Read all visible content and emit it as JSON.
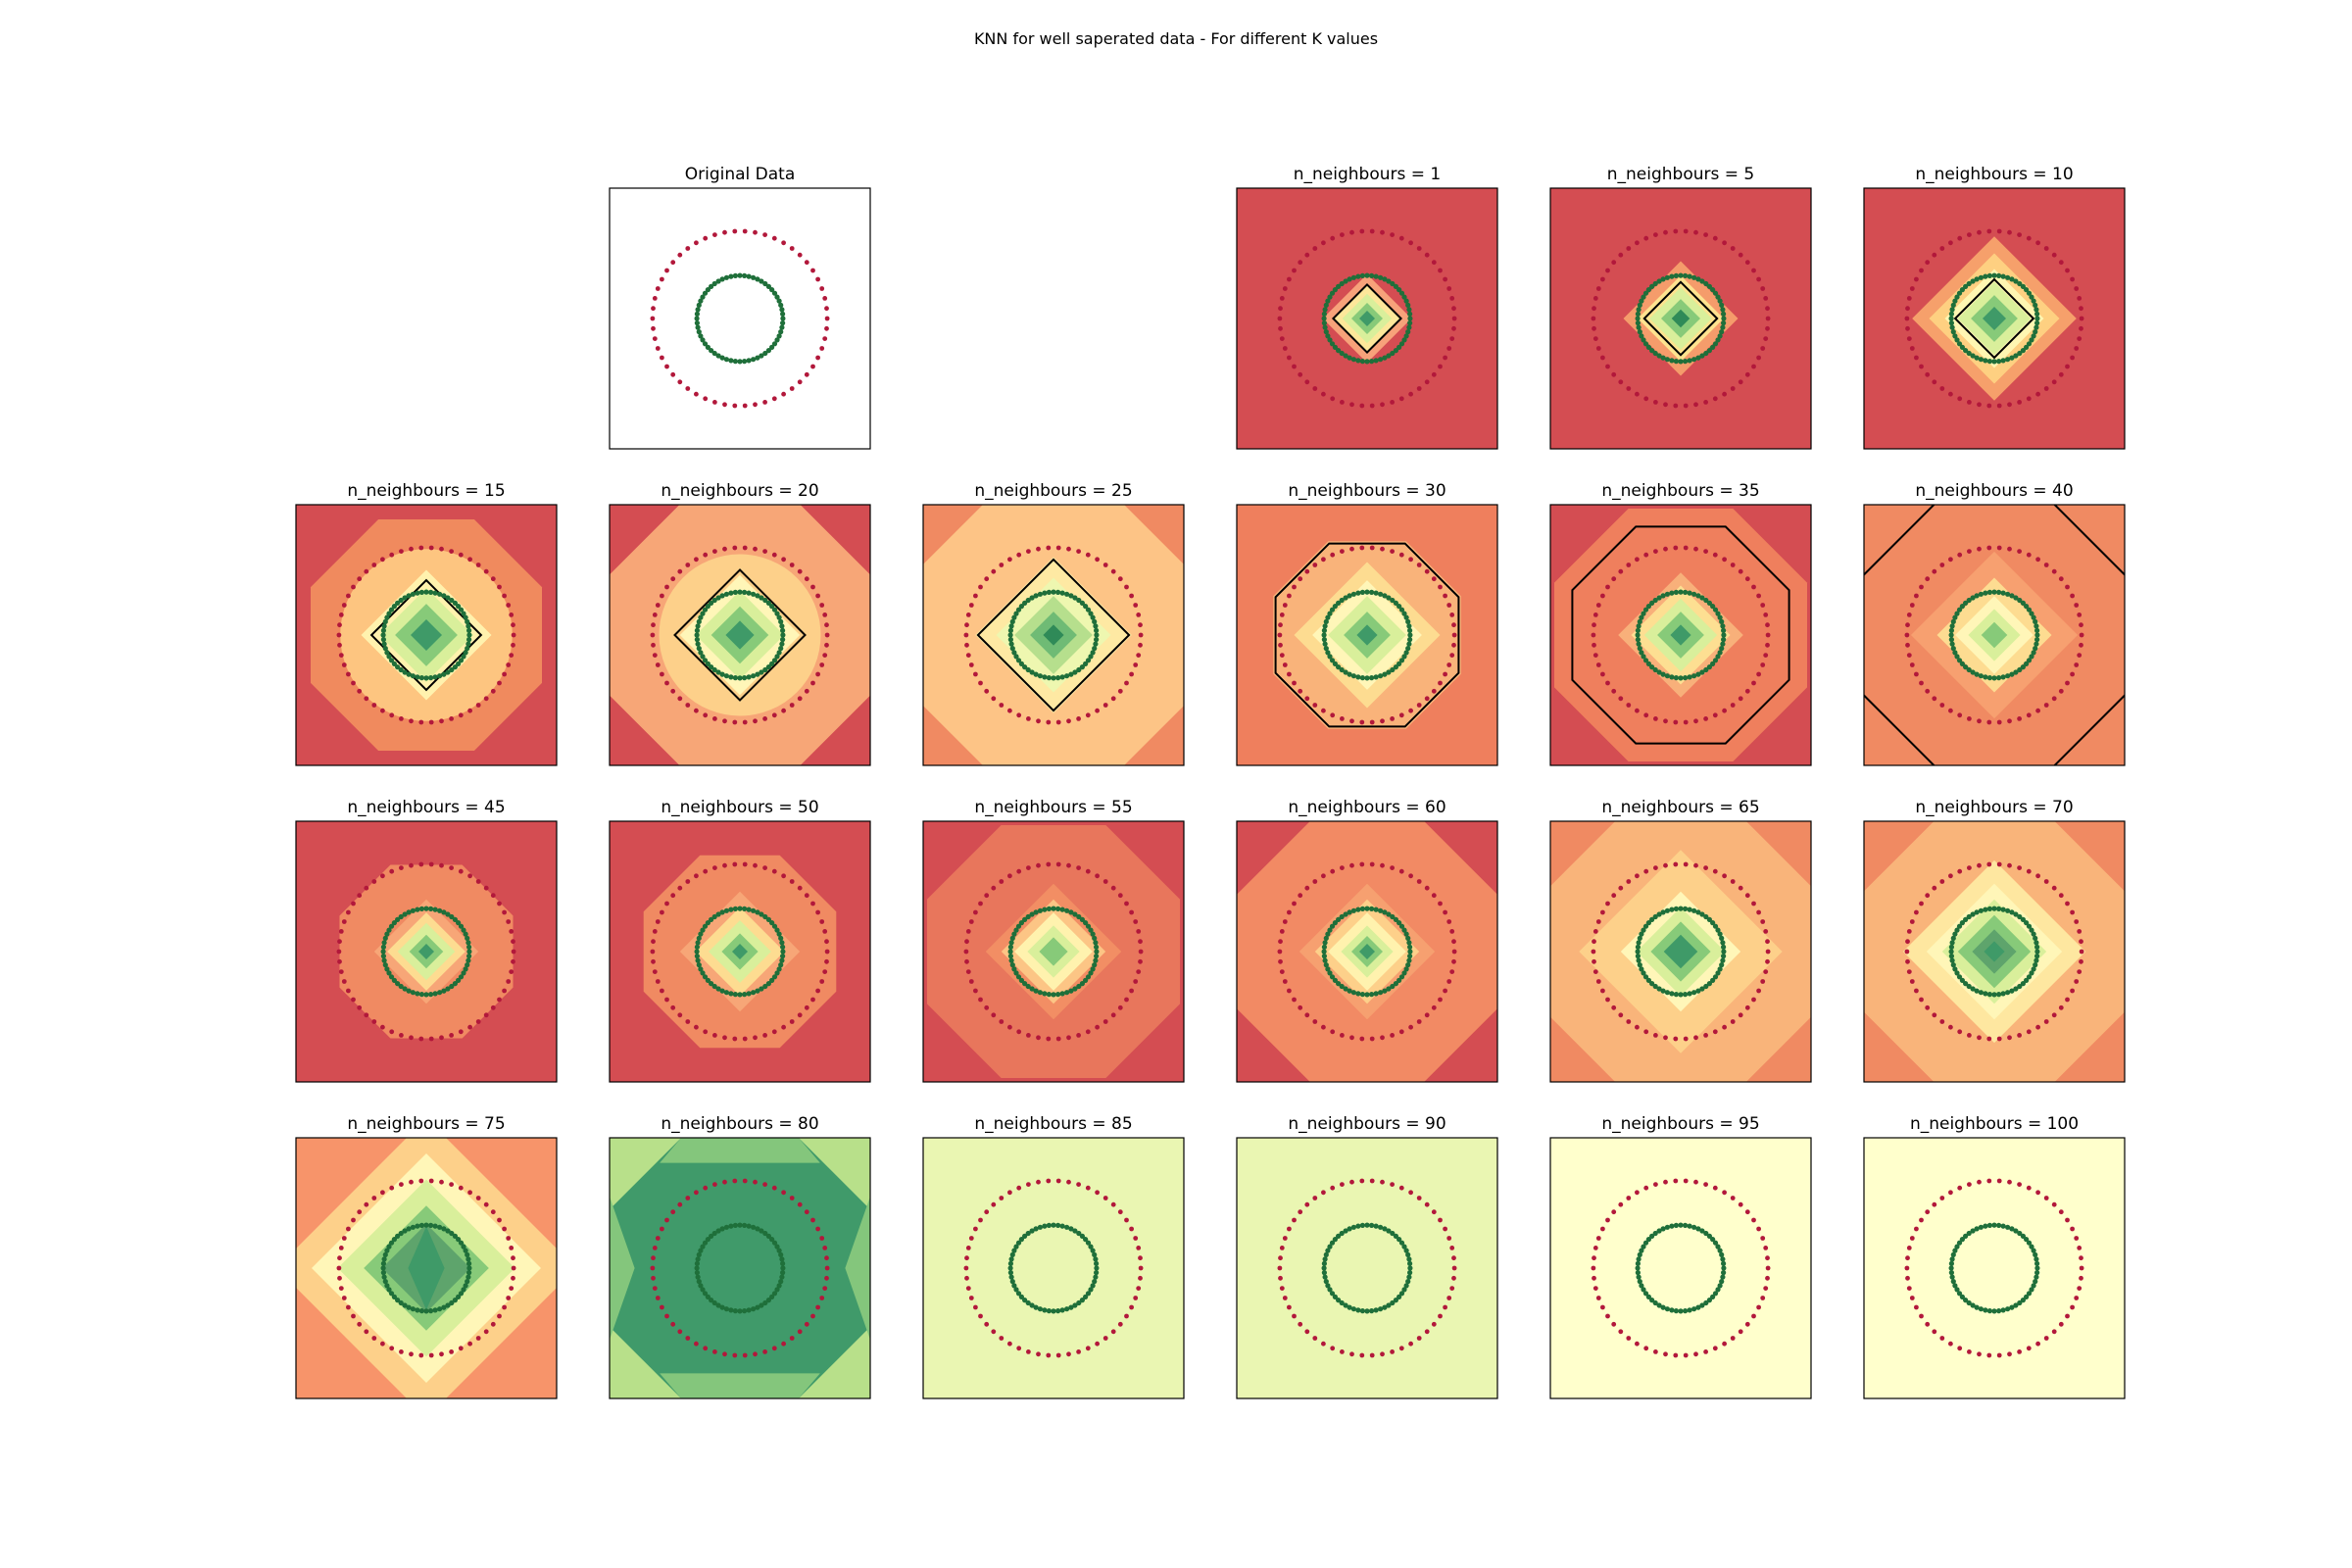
{
  "figure_title": "KNN for well saperated data - For different K values",
  "colors": {
    "inner_ring": "#1f6f3a",
    "outer_ring": "#b2183b",
    "boundary": "#000000",
    "frame": "#000000"
  },
  "chart_data": [
    {
      "type": "scatter",
      "title": "Original Data",
      "row": 0,
      "col": 1,
      "series": [
        {
          "marker": "inner",
          "color": "#1f6f3a"
        },
        {
          "marker": "outer",
          "color": "#b2183b"
        }
      ],
      "background": "#ffffff",
      "bands": [],
      "boundary": null
    },
    {
      "type": "heatmap",
      "title": "n_neighbours = 1",
      "row": 0,
      "col": 3,
      "background": "#d44d52",
      "bands": [
        {
          "r": 0.34,
          "c": "#f7a27a"
        },
        {
          "r": 0.26,
          "c": "#fde79a"
        },
        {
          "r": 0.19,
          "c": "#d9ef9b"
        },
        {
          "r": 0.12,
          "c": "#87ca79"
        },
        {
          "r": 0.06,
          "c": "#3f9a68"
        }
      ],
      "boundary": {
        "shape": "diamond",
        "r": 0.26
      }
    },
    {
      "type": "heatmap",
      "title": "n_neighbours = 5",
      "row": 0,
      "col": 4,
      "background": "#d44d52",
      "bands": [
        {
          "r": 0.44,
          "c": "#f59c6b"
        },
        {
          "r": 0.33,
          "c": "#fee38f"
        },
        {
          "r": 0.24,
          "c": "#d9ef9b"
        },
        {
          "r": 0.15,
          "c": "#87ca79"
        },
        {
          "r": 0.07,
          "c": "#2f8a58"
        }
      ],
      "boundary": {
        "shape": "diamond",
        "r": 0.28
      }
    },
    {
      "type": "heatmap",
      "title": "n_neighbours = 10",
      "row": 0,
      "col": 5,
      "background": "#d44d52",
      "bands": [
        {
          "r": 0.63,
          "c": "#f6a06b"
        },
        {
          "r": 0.5,
          "c": "#fed081"
        },
        {
          "r": 0.38,
          "c": "#fff6b2"
        },
        {
          "r": 0.28,
          "c": "#d9ef9b"
        },
        {
          "r": 0.18,
          "c": "#87ca79"
        },
        {
          "r": 0.09,
          "c": "#3f9a68"
        }
      ],
      "boundary": {
        "shape": "diamond",
        "r": 0.3
      }
    },
    {
      "type": "heatmap",
      "title": "n_neighbours = 15",
      "row": 1,
      "col": 0,
      "background": "#d44d52",
      "bands": [
        {
          "r": 0.96,
          "c": "#f08a5e",
          "shape": "octagon"
        },
        {
          "r": 0.66,
          "c": "#fdc580",
          "shape": "circle"
        },
        {
          "r": 0.5,
          "c": "#fff2ae"
        },
        {
          "r": 0.36,
          "c": "#d9ef9b"
        },
        {
          "r": 0.24,
          "c": "#87ca79"
        },
        {
          "r": 0.12,
          "c": "#3f9a68"
        }
      ],
      "boundary": {
        "shape": "diamond",
        "r": 0.42
      }
    },
    {
      "type": "heatmap",
      "title": "n_neighbours = 20",
      "row": 1,
      "col": 1,
      "background": "#d44d52",
      "bands": [
        {
          "r": 1.12,
          "c": "#f7a677",
          "shape": "octagon"
        },
        {
          "r": 0.62,
          "c": "#fdd08a",
          "shape": "circle"
        },
        {
          "r": 0.46,
          "c": "#fff6b8"
        },
        {
          "r": 0.34,
          "c": "#d9ef9b"
        },
        {
          "r": 0.22,
          "c": "#87ca79"
        },
        {
          "r": 0.11,
          "c": "#3f9a68"
        }
      ],
      "boundary": {
        "shape": "diamond",
        "r": 0.5
      }
    },
    {
      "type": "heatmap",
      "title": "n_neighbours = 25",
      "row": 1,
      "col": 2,
      "background": "#f08a62",
      "bands": [
        {
          "r": 1.18,
          "c": "#fdc486",
          "shape": "octagon"
        },
        {
          "r": 0.6,
          "c": "#fee9a3"
        },
        {
          "r": 0.44,
          "c": "#eef7b0"
        },
        {
          "r": 0.3,
          "c": "#b6df8d"
        },
        {
          "r": 0.18,
          "c": "#6fbb75"
        },
        {
          "r": 0.08,
          "c": "#2f8a58"
        }
      ],
      "boundary": {
        "shape": "diamond",
        "r": 0.58
      }
    },
    {
      "type": "heatmap",
      "title": "n_neighbours = 30",
      "row": 1,
      "col": 3,
      "background": "#ef7f5d",
      "bands": [
        {
          "r": 0.78,
          "c": "#f9b37a",
          "shape": "octagon"
        },
        {
          "r": 0.56,
          "c": "#fddc91"
        },
        {
          "r": 0.42,
          "c": "#fff6b8"
        },
        {
          "r": 0.3,
          "c": "#d9ef9b"
        },
        {
          "r": 0.18,
          "c": "#87ca79"
        },
        {
          "r": 0.08,
          "c": "#3f9a68"
        }
      ],
      "boundary": {
        "shape": "octagon",
        "r": 0.76
      }
    },
    {
      "type": "heatmap",
      "title": "n_neighbours = 35",
      "row": 1,
      "col": 4,
      "background": "#d44d52",
      "bands": [
        {
          "r": 1.05,
          "c": "#ef7f5d",
          "shape": "octagon"
        },
        {
          "r": 0.48,
          "c": "#f8b07a"
        },
        {
          "r": 0.38,
          "c": "#fddf92"
        },
        {
          "r": 0.28,
          "c": "#d9ef9b"
        },
        {
          "r": 0.18,
          "c": "#87ca79"
        },
        {
          "r": 0.08,
          "c": "#3f9a68"
        }
      ],
      "boundary": {
        "shape": "octagon",
        "r": 0.9
      }
    },
    {
      "type": "heatmap",
      "title": "n_neighbours = 40",
      "row": 1,
      "col": 5,
      "background": "#f08a62",
      "bands": [
        {
          "r": 0.64,
          "c": "#f7a070"
        },
        {
          "r": 0.44,
          "c": "#fddc91"
        },
        {
          "r": 0.3,
          "c": "#fff6b8"
        },
        {
          "r": 0.2,
          "c": "#d9ef9b"
        },
        {
          "r": 0.1,
          "c": "#87ca79"
        }
      ],
      "boundary": {
        "shape": "octagon",
        "r": 1.12
      }
    },
    {
      "type": "heatmap",
      "title": "n_neighbours = 45",
      "row": 2,
      "col": 0,
      "background": "#d44d52",
      "bands": [
        {
          "r": 0.72,
          "c": "#f08a62",
          "shape": "octagon"
        },
        {
          "r": 0.4,
          "c": "#f7a677"
        },
        {
          "r": 0.3,
          "c": "#fddc91"
        },
        {
          "r": 0.22,
          "c": "#d9ef9b"
        },
        {
          "r": 0.13,
          "c": "#87ca79"
        },
        {
          "r": 0.06,
          "c": "#3f9a68"
        }
      ],
      "boundary": null
    },
    {
      "type": "heatmap",
      "title": "n_neighbours = 50",
      "row": 2,
      "col": 1,
      "background": "#d44d52",
      "bands": [
        {
          "r": 0.8,
          "c": "#f08a62",
          "shape": "octagon"
        },
        {
          "r": 0.46,
          "c": "#f7a677"
        },
        {
          "r": 0.34,
          "c": "#fddc91"
        },
        {
          "r": 0.24,
          "c": "#d9ef9b"
        },
        {
          "r": 0.14,
          "c": "#87ca79"
        },
        {
          "r": 0.06,
          "c": "#3f9a68"
        }
      ],
      "boundary": null
    },
    {
      "type": "heatmap",
      "title": "n_neighbours = 55",
      "row": 2,
      "col": 2,
      "background": "#d44d52",
      "bands": [
        {
          "r": 1.05,
          "c": "#e8765c",
          "shape": "octagon"
        },
        {
          "r": 0.52,
          "c": "#f28e64"
        },
        {
          "r": 0.4,
          "c": "#fcc585"
        },
        {
          "r": 0.3,
          "c": "#fff2ae"
        },
        {
          "r": 0.2,
          "c": "#d9ef9b"
        },
        {
          "r": 0.11,
          "c": "#87ca79"
        }
      ],
      "boundary": null
    },
    {
      "type": "heatmap",
      "title": "n_neighbours = 60",
      "row": 2,
      "col": 3,
      "background": "#d44d52",
      "bands": [
        {
          "r": 1.1,
          "c": "#f28a64",
          "shape": "octagon"
        },
        {
          "r": 0.52,
          "c": "#f6a070"
        },
        {
          "r": 0.4,
          "c": "#fdd08a"
        },
        {
          "r": 0.3,
          "c": "#fff2ae"
        },
        {
          "r": 0.2,
          "c": "#d9ef9b"
        },
        {
          "r": 0.12,
          "c": "#87ca79"
        },
        {
          "r": 0.06,
          "c": "#3f9a68"
        }
      ],
      "boundary": null
    },
    {
      "type": "heatmap",
      "title": "n_neighbours = 65",
      "row": 2,
      "col": 4,
      "background": "#f08a62",
      "bands": [
        {
          "r": 1.15,
          "c": "#f9b47a",
          "shape": "octagon"
        },
        {
          "r": 0.78,
          "c": "#fdd08a"
        },
        {
          "r": 0.46,
          "c": "#fff6b8"
        },
        {
          "r": 0.34,
          "c": "#d9ef9b"
        },
        {
          "r": 0.23,
          "c": "#87ca79"
        },
        {
          "r": 0.13,
          "c": "#3f9a68"
        }
      ],
      "boundary": null
    },
    {
      "type": "heatmap",
      "title": "n_neighbours = 70",
      "row": 2,
      "col": 5,
      "background": "#f08a62",
      "bands": [
        {
          "r": 1.12,
          "c": "#f9b47a",
          "shape": "octagon"
        },
        {
          "r": 0.7,
          "c": "#fee7a0"
        },
        {
          "r": 0.52,
          "c": "#fff6b8"
        },
        {
          "r": 0.4,
          "c": "#d9ef9b"
        },
        {
          "r": 0.28,
          "c": "#87ca79"
        },
        {
          "r": 0.17,
          "c": "#5ea46c"
        },
        {
          "r": 0.08,
          "c": "#3f9a68"
        }
      ],
      "boundary": null
    },
    {
      "type": "heatmap",
      "title": "n_neighbours = 75",
      "row": 3,
      "col": 0,
      "background": "#f7946a",
      "bands": [
        {
          "r": 1.15,
          "c": "#fdd08a"
        },
        {
          "r": 0.88,
          "c": "#fff6b8"
        },
        {
          "r": 0.68,
          "c": "#d9ef9b"
        },
        {
          "r": 0.48,
          "c": "#87ca79"
        },
        {
          "r": 0.34,
          "c": "#5ea46c"
        },
        {
          "r": 0.2,
          "c": "#3f9a68",
          "shape": "tall"
        }
      ],
      "boundary": null
    },
    {
      "type": "heatmap",
      "title": "n_neighbours = 80",
      "row": 3,
      "col": 1,
      "background": "#409a6a",
      "bands": [],
      "corners": "#b8e08a",
      "edges": "#84c67c",
      "boundary": null
    },
    {
      "type": "heatmap",
      "title": "n_neighbours = 85",
      "row": 3,
      "col": 2,
      "background": "#eaf6b2",
      "bands": [],
      "boundary": null
    },
    {
      "type": "heatmap",
      "title": "n_neighbours = 90",
      "row": 3,
      "col": 3,
      "background": "#eaf6b2",
      "bands": [],
      "boundary": null
    },
    {
      "type": "heatmap",
      "title": "n_neighbours = 95",
      "row": 3,
      "col": 4,
      "background": "#ffffcc",
      "bands": [],
      "boundary": null
    },
    {
      "type": "heatmap",
      "title": "n_neighbours = 100",
      "row": 3,
      "col": 5,
      "background": "#ffffcc",
      "bands": [],
      "boundary": null
    }
  ]
}
